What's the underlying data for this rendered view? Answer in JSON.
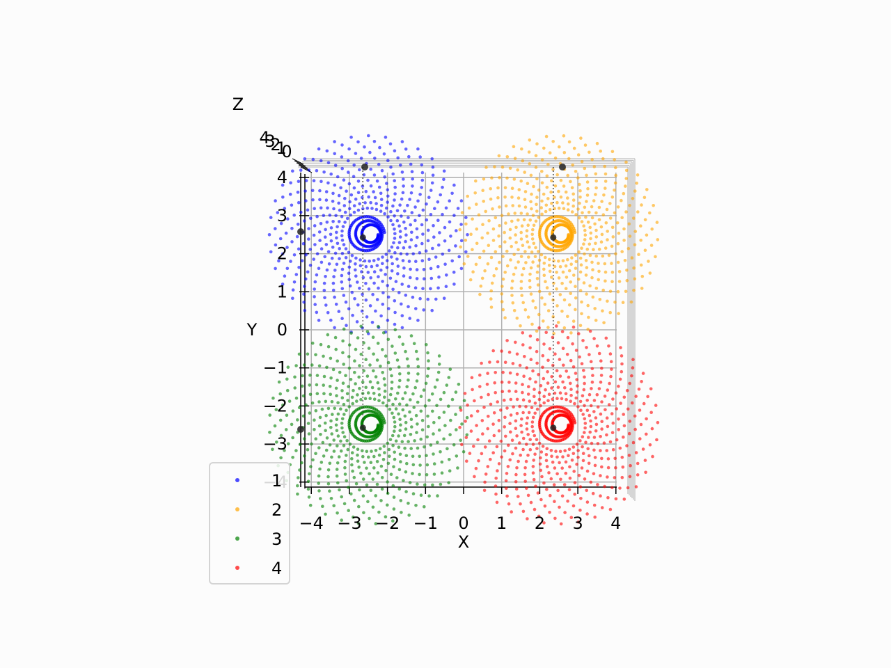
{
  "chart_data": {
    "type": "scatter",
    "projection": "3d-top-view",
    "xlabel": "X",
    "ylabel": "Y",
    "zlabel": "Z",
    "xlim": [
      -4.2,
      4.2
    ],
    "ylim": [
      -4.2,
      4.2
    ],
    "x_ticks": [
      "−4",
      "−3",
      "−2",
      "−1",
      "0",
      "1",
      "2",
      "3",
      "4"
    ],
    "y_ticks": [
      "4",
      "3",
      "2",
      "1",
      "0",
      "−1",
      "−2",
      "−3",
      "−4"
    ],
    "z_ticks": [
      "4",
      "3",
      "2",
      "1",
      "0"
    ],
    "grid": true,
    "legend_position": "lower-left",
    "series": [
      {
        "name": "1",
        "color": "#0000ff",
        "center": [
          -2.5,
          2.5
        ],
        "outer_radius": 2.6
      },
      {
        "name": "2",
        "color": "#ffa500",
        "center": [
          2.5,
          2.5
        ],
        "outer_radius": 2.6
      },
      {
        "name": "3",
        "color": "#008000",
        "center": [
          -2.5,
          -2.5
        ],
        "outer_radius": 2.6
      },
      {
        "name": "4",
        "color": "#ff0000",
        "center": [
          2.5,
          -2.5
        ],
        "outer_radius": 2.6
      }
    ]
  }
}
